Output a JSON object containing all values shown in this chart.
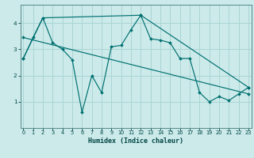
{
  "xlabel": "Humidex (Indice chaleur)",
  "bg_color": "#cceaea",
  "grid_color": "#aad4d4",
  "line_color": "#007070",
  "spine_color": "#558888",
  "xlim": [
    -0.3,
    23.3
  ],
  "ylim": [
    0,
    4.7
  ],
  "xticks": [
    0,
    1,
    2,
    3,
    4,
    5,
    6,
    7,
    8,
    9,
    10,
    11,
    12,
    13,
    14,
    15,
    16,
    17,
    18,
    19,
    20,
    21,
    22,
    23
  ],
  "yticks": [
    1,
    2,
    3,
    4
  ],
  "zigzag_x": [
    0,
    1,
    2,
    3,
    4,
    5,
    6,
    7,
    8,
    9,
    10,
    11,
    12,
    13,
    14,
    15,
    16,
    17,
    18,
    19,
    20,
    21,
    22,
    23
  ],
  "zigzag_y": [
    2.65,
    3.45,
    4.2,
    3.25,
    3.0,
    2.6,
    0.6,
    2.0,
    1.35,
    3.1,
    3.15,
    3.75,
    4.3,
    3.4,
    3.35,
    3.25,
    2.65,
    2.65,
    1.35,
    1.0,
    1.2,
    1.05,
    1.3,
    1.55
  ],
  "curve_x": [
    0,
    2,
    12,
    23
  ],
  "curve_y": [
    2.65,
    4.2,
    4.3,
    1.55
  ],
  "trend_x": [
    0,
    23
  ],
  "trend_y": [
    3.45,
    1.3
  ],
  "xlabel_fontsize": 6.0,
  "tick_fontsize": 4.8
}
